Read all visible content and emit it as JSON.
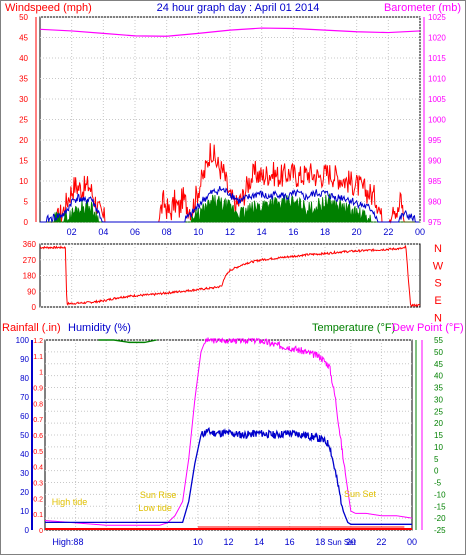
{
  "chart_data": [
    {
      "type": "line",
      "title": "24 hour graph day : April 01 2014",
      "left_axis_label": "Windspeed (mph)",
      "right_axis_label": "Barometer (mb)",
      "colors": {
        "left_axis": "#ff0000",
        "right_axis": "#ff00ff",
        "title": "#0000cc"
      },
      "left_ticks": [
        "0",
        "5",
        "10",
        "15",
        "20",
        "25",
        "30",
        "35",
        "40",
        "45",
        "50"
      ],
      "right_ticks": [
        "975",
        "980",
        "985",
        "990",
        "995",
        "1000",
        "1005",
        "1010",
        "1015",
        "1020",
        "1025"
      ],
      "xticks": [
        "02",
        "04",
        "06",
        "08",
        "10",
        "12",
        "14",
        "16",
        "18",
        "20",
        "22",
        "00"
      ],
      "ylim_left": [
        0,
        50
      ],
      "ylim_right": [
        975,
        1025
      ],
      "series": [
        {
          "axis": "right",
          "color": "#ff00ff",
          "x": [
            0,
            2,
            4,
            6,
            8,
            10,
            12,
            14,
            16,
            18,
            20,
            22,
            24
          ],
          "y": [
            1022,
            1021.6,
            1021,
            1020.4,
            1020.3,
            1021,
            1021.8,
            1022.3,
            1022.2,
            1021.8,
            1021.4,
            1021.2,
            1021.6
          ]
        },
        {
          "axis": "left",
          "color": "#ff0000",
          "x": [
            0,
            1,
            1.5,
            1.9,
            2.2,
            2.7,
            3.1,
            3.4,
            3.8,
            4.2,
            4.6,
            5,
            6,
            7,
            7.4,
            7.8,
            8.2,
            8.5,
            8.8,
            9,
            9.3,
            9.6,
            10,
            10.4,
            10.8,
            11.2,
            11.6,
            12,
            12.4,
            12.8,
            13.2,
            13.6,
            14,
            14.6,
            15.2,
            15.8,
            16.4,
            17,
            17.6,
            18.2,
            18.8,
            19.4,
            20,
            20.4,
            20.8,
            21.2,
            21.4,
            21.6,
            22,
            22.3,
            22.6,
            22.8,
            23,
            24
          ],
          "y": [
            0,
            0,
            3,
            7,
            9,
            8,
            9,
            6,
            2,
            0,
            0,
            0,
            0,
            0,
            0,
            5,
            2,
            5,
            3,
            6,
            4,
            3,
            8,
            12,
            18,
            14,
            12,
            6,
            4,
            6,
            10,
            12,
            11,
            12,
            11,
            12,
            11,
            12,
            11,
            12,
            11,
            10,
            9,
            8,
            7,
            6,
            4,
            0,
            0,
            5,
            2,
            6,
            0,
            0
          ]
        },
        {
          "axis": "left",
          "color": "#0000cc",
          "x": [
            0,
            1.6,
            2,
            2.4,
            2.8,
            3.2,
            3.6,
            4,
            9,
            9.6,
            10.2,
            10.8,
            11.4,
            12,
            12.6,
            13.2,
            13.8,
            14.4,
            15,
            15.6,
            16.2,
            16.8,
            17.4,
            18,
            18.6,
            19.2,
            19.8,
            20.4,
            21,
            21.4,
            22.6,
            23,
            24
          ],
          "y": [
            0,
            2,
            5,
            6,
            5,
            6,
            3,
            0,
            0,
            2,
            5,
            7,
            8,
            7,
            5,
            6,
            7,
            6,
            7,
            6,
            7,
            6,
            7,
            7,
            6,
            6,
            5,
            4,
            3,
            0,
            0,
            2,
            0
          ]
        },
        {
          "axis": "left",
          "color": "#008000",
          "x": [
            0,
            1.8,
            2.3,
            2.9,
            3.3,
            3.8,
            9.2,
            9.8,
            10.4,
            11,
            11.6,
            12.2,
            12.8,
            13.4,
            14,
            14.6,
            15.2,
            15.8,
            16.4,
            17,
            17.6,
            18.2,
            18.8,
            19.4,
            20,
            20.6,
            21.2,
            24
          ],
          "y": [
            0,
            1,
            3,
            4,
            3,
            0,
            0,
            1,
            3,
            5,
            4,
            3,
            2,
            3,
            4,
            5,
            4,
            5,
            4,
            3,
            4,
            5,
            4,
            3,
            2,
            1,
            0,
            0
          ]
        }
      ]
    },
    {
      "type": "line",
      "title": "",
      "right_axis_labels": [
        "N",
        "W",
        "S",
        "E",
        "N"
      ],
      "colors": {
        "axis": "#ff0000"
      },
      "left_ticks": [
        "0",
        "90",
        "180",
        "270",
        "360"
      ],
      "xticks": [],
      "ylim": [
        0,
        360
      ],
      "series": [
        {
          "color": "#ff0000",
          "x": [
            0,
            1.6,
            1.7,
            1.8,
            2,
            3,
            4,
            5,
            6,
            7,
            8,
            9,
            10,
            11,
            11.5,
            11.6,
            12,
            12.5,
            13,
            14,
            15,
            16,
            17,
            18,
            19,
            20,
            21,
            22,
            23,
            23.1,
            23.4,
            24
          ],
          "y": [
            340,
            340,
            10,
            20,
            20,
            25,
            35,
            55,
            65,
            70,
            80,
            90,
            100,
            110,
            120,
            160,
            210,
            230,
            250,
            270,
            280,
            290,
            300,
            305,
            315,
            320,
            325,
            330,
            335,
            350,
            10,
            10
          ]
        }
      ]
    },
    {
      "type": "line",
      "title": "",
      "axis_labels": {
        "rainfall": "Rainfall (.in)",
        "humidity": "Humidity (%)",
        "temperature": "Temperature (°F)",
        "dew_point": "Dew Point (°F)"
      },
      "colors": {
        "rainfall": "#ff0000",
        "humidity": "#0000cc",
        "temperature": "#008000",
        "dew_point": "#ff00ff"
      },
      "rain_ticks": [
        "0",
        "0.1",
        "0.2",
        "0.3",
        "0.4",
        "0.5",
        "0.6",
        "0.7",
        "0.8",
        "0.9",
        "1",
        "1.1",
        "1.2"
      ],
      "humidity_ticks": [
        "0",
        "10",
        "20",
        "30",
        "40",
        "50",
        "60",
        "70",
        "80",
        "90",
        "100"
      ],
      "temp_ticks": [
        "-25",
        "-20",
        "-15",
        "-10",
        "-5",
        "0",
        "5",
        "10",
        "15",
        "20",
        "25",
        "30",
        "35",
        "40",
        "45",
        "50",
        "55"
      ],
      "xticks": [
        "10",
        "12",
        "14",
        "16",
        "18",
        "20",
        "22",
        "00"
      ],
      "x_extra_labels": [
        "High:88",
        "Sun Set"
      ],
      "annotations": [
        "High tide",
        "Sun Rise",
        "Low tide",
        "Sun Set"
      ],
      "ylim_temp": [
        -25,
        55
      ],
      "series": [
        {
          "name": "Temperature",
          "color": "#ff00ff",
          "x": [
            0,
            2,
            4,
            6,
            7.5,
            8,
            8.5,
            9,
            9.4,
            9.8,
            10.2,
            10.5,
            11,
            12,
            13,
            14,
            15,
            16,
            17,
            18,
            18.6,
            19,
            19.5,
            20,
            20.3,
            21,
            22,
            23,
            24
          ],
          "y": [
            -21,
            -22,
            -23,
            -23,
            -23,
            -22,
            -19,
            -13,
            5,
            30,
            50,
            55,
            55,
            55,
            55,
            55,
            53,
            52,
            50,
            48,
            44,
            30,
            5,
            -17,
            -18,
            -18,
            -19,
            -19,
            -20
          ]
        },
        {
          "name": "Humidity",
          "color": "#0000cc",
          "x": [
            0,
            2,
            4,
            6,
            8,
            9,
            9.4,
            9.8,
            10.2,
            10.6,
            11,
            12,
            13,
            14,
            15,
            16,
            17,
            18,
            18.6,
            19,
            19.5,
            19.8,
            20,
            24
          ],
          "y": [
            4,
            4,
            4,
            4,
            4,
            4,
            15,
            35,
            50,
            52,
            51,
            51,
            50,
            51,
            50,
            51,
            50,
            48,
            45,
            30,
            10,
            4,
            3,
            3
          ]
        },
        {
          "name": "Dew Point",
          "color": "#008000",
          "x": [
            3.5,
            4.5,
            5.5,
            6.5,
            7.3
          ],
          "y": [
            55,
            55,
            54,
            54,
            55
          ]
        },
        {
          "name": "Rainfall",
          "color": "#ff0000",
          "x": [
            0,
            24
          ],
          "y": [
            0,
            0
          ]
        }
      ]
    }
  ]
}
